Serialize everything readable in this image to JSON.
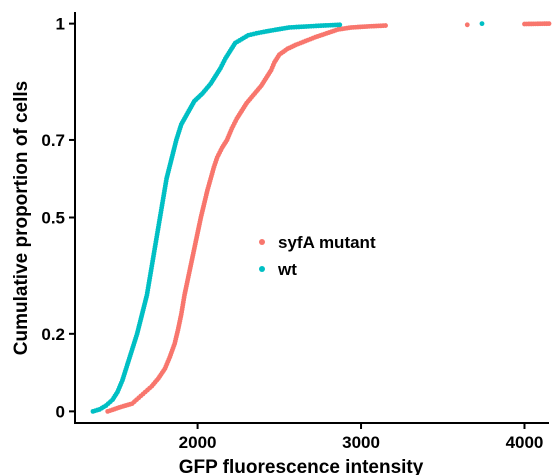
{
  "chart_data": {
    "type": "scatter",
    "title": "",
    "xlabel": "GFP fluorescence intensity",
    "ylabel": "Cumulative proportion of cells",
    "xlim": [
      1250,
      4150
    ],
    "ylim": [
      -0.03,
      1.03
    ],
    "x_ticks": [
      {
        "value": 2000,
        "label": "2000"
      },
      {
        "value": 3000,
        "label": "3000"
      },
      {
        "value": 4000,
        "label": "4000"
      }
    ],
    "y_ticks": [
      {
        "value": 0,
        "label": "0"
      },
      {
        "value": 0.2,
        "label": "0.2"
      },
      {
        "value": 0.5,
        "label": "0.5"
      },
      {
        "value": 0.7,
        "label": "0.7"
      },
      {
        "value": 1,
        "label": "1"
      }
    ],
    "legend_position": "center",
    "series": [
      {
        "name": "syfA mutant",
        "color": "#f8766d",
        "points": [
          [
            1450,
            0.0
          ],
          [
            1480,
            0.004
          ],
          [
            1520,
            0.01
          ],
          [
            1560,
            0.015
          ],
          [
            1600,
            0.02
          ],
          [
            1640,
            0.035
          ],
          [
            1680,
            0.05
          ],
          [
            1720,
            0.065
          ],
          [
            1760,
            0.085
          ],
          [
            1800,
            0.11
          ],
          [
            1830,
            0.14
          ],
          [
            1860,
            0.175
          ],
          [
            1880,
            0.21
          ],
          [
            1900,
            0.25
          ],
          [
            1920,
            0.3
          ],
          [
            1940,
            0.34
          ],
          [
            1960,
            0.38
          ],
          [
            1980,
            0.42
          ],
          [
            2000,
            0.46
          ],
          [
            2020,
            0.5
          ],
          [
            2040,
            0.535
          ],
          [
            2060,
            0.57
          ],
          [
            2080,
            0.6
          ],
          [
            2100,
            0.63
          ],
          [
            2120,
            0.655
          ],
          [
            2150,
            0.68
          ],
          [
            2180,
            0.7
          ],
          [
            2210,
            0.73
          ],
          [
            2240,
            0.755
          ],
          [
            2270,
            0.775
          ],
          [
            2300,
            0.795
          ],
          [
            2330,
            0.81
          ],
          [
            2360,
            0.825
          ],
          [
            2390,
            0.84
          ],
          [
            2420,
            0.86
          ],
          [
            2450,
            0.88
          ],
          [
            2470,
            0.9
          ],
          [
            2500,
            0.92
          ],
          [
            2550,
            0.935
          ],
          [
            2600,
            0.945
          ],
          [
            2660,
            0.955
          ],
          [
            2720,
            0.965
          ],
          [
            2790,
            0.975
          ],
          [
            2860,
            0.985
          ],
          [
            2940,
            0.99
          ],
          [
            3050,
            0.993
          ],
          [
            3150,
            0.995
          ],
          [
            3650,
            0.997
          ],
          [
            4000,
            0.999
          ],
          [
            4150,
            1.0
          ]
        ]
      },
      {
        "name": "wt",
        "color": "#00bfc4",
        "points": [
          [
            1360,
            0.0
          ],
          [
            1400,
            0.005
          ],
          [
            1440,
            0.015
          ],
          [
            1480,
            0.03
          ],
          [
            1510,
            0.05
          ],
          [
            1540,
            0.08
          ],
          [
            1570,
            0.12
          ],
          [
            1600,
            0.16
          ],
          [
            1630,
            0.2
          ],
          [
            1660,
            0.25
          ],
          [
            1690,
            0.3
          ],
          [
            1710,
            0.35
          ],
          [
            1730,
            0.4
          ],
          [
            1750,
            0.45
          ],
          [
            1770,
            0.5
          ],
          [
            1790,
            0.55
          ],
          [
            1810,
            0.6
          ],
          [
            1840,
            0.65
          ],
          [
            1870,
            0.7
          ],
          [
            1900,
            0.74
          ],
          [
            1940,
            0.77
          ],
          [
            1980,
            0.8
          ],
          [
            2030,
            0.82
          ],
          [
            2080,
            0.845
          ],
          [
            2110,
            0.865
          ],
          [
            2140,
            0.885
          ],
          [
            2170,
            0.91
          ],
          [
            2200,
            0.93
          ],
          [
            2230,
            0.95
          ],
          [
            2270,
            0.96
          ],
          [
            2310,
            0.97
          ],
          [
            2360,
            0.975
          ],
          [
            2420,
            0.98
          ],
          [
            2490,
            0.985
          ],
          [
            2560,
            0.99
          ],
          [
            2680,
            0.993
          ],
          [
            2770,
            0.995
          ],
          [
            2870,
            0.997
          ],
          [
            3740,
            1.0
          ]
        ]
      }
    ]
  }
}
